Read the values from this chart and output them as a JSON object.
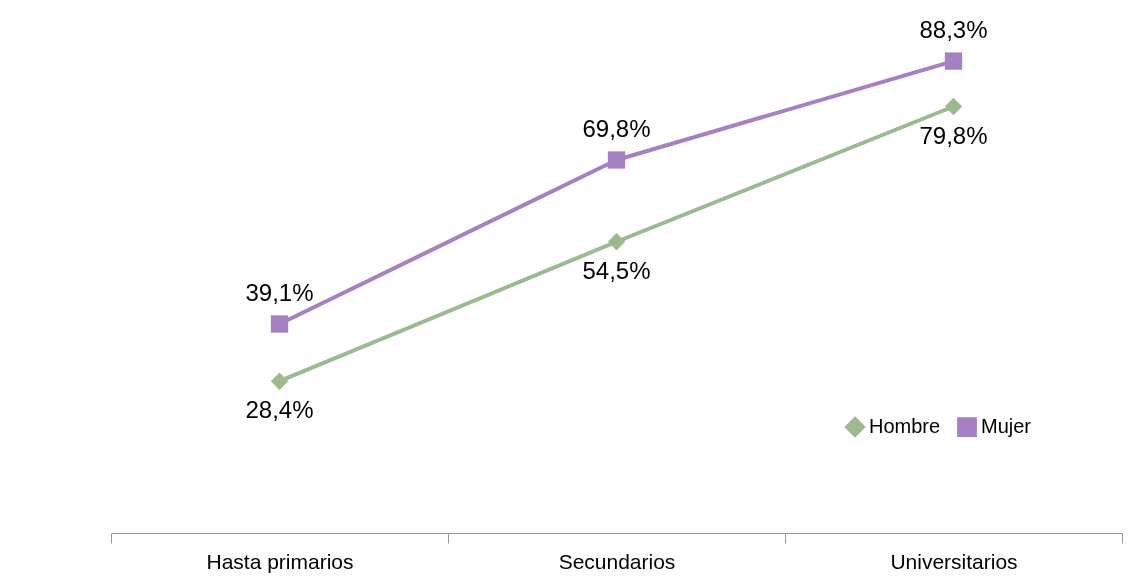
{
  "chart_data": {
    "type": "line",
    "categories": [
      "Hasta primarios",
      "Secundarios",
      "Universitarios"
    ],
    "series": [
      {
        "name": "Hombre",
        "color": "#9bbb8f",
        "marker": "diamond",
        "values": [
          28.4,
          54.5,
          79.8
        ],
        "value_labels": [
          "28,4%",
          "54,5%",
          "79,8%"
        ]
      },
      {
        "name": "Mujer",
        "color": "#a67fc4",
        "marker": "square",
        "values": [
          39.1,
          69.8,
          88.3
        ],
        "value_labels": [
          "39,1%",
          "69,8%",
          "88,3%"
        ]
      }
    ],
    "tick_labels": "x",
    "grid": false,
    "legend": "bottom right"
  }
}
